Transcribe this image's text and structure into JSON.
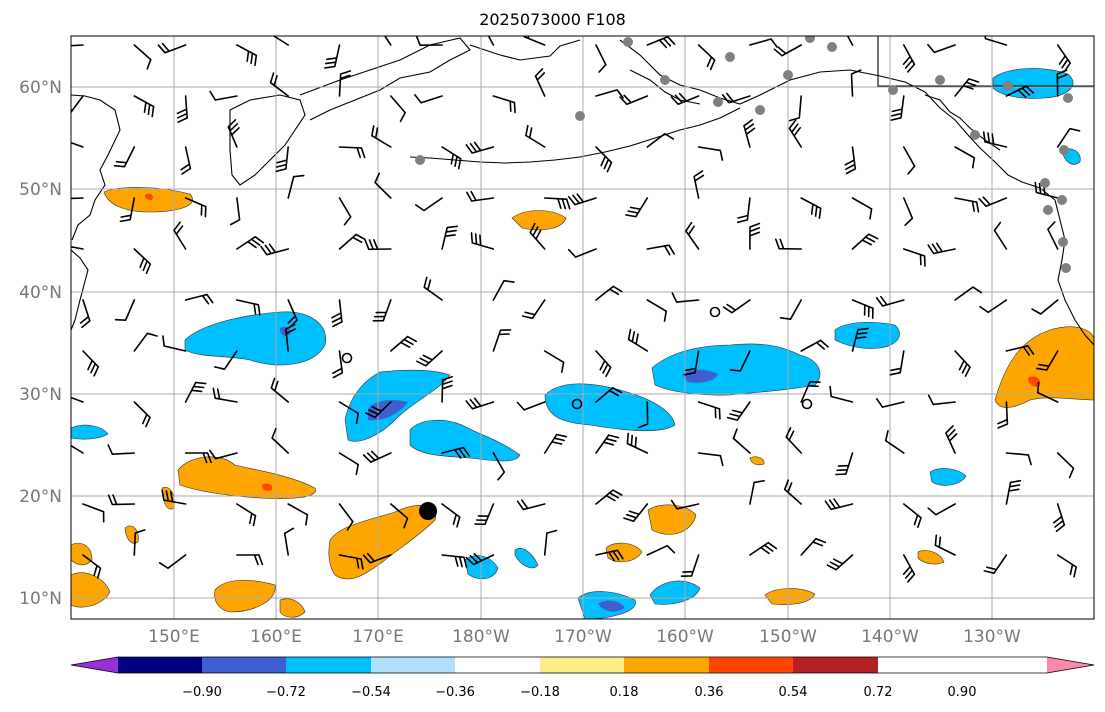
{
  "title": "2025073000 F108",
  "map": {
    "lat_labels": [
      "60°N",
      "50°N",
      "40°N",
      "30°N",
      "20°N",
      "10°N"
    ],
    "lat_values": [
      60,
      50,
      40,
      30,
      20,
      10
    ],
    "lon_labels": [
      "150°E",
      "160°E",
      "170°E",
      "180°W",
      "170°W",
      "160°W",
      "150°W",
      "140°W",
      "130°W"
    ],
    "lon_values": [
      150,
      160,
      170,
      180,
      190,
      200,
      210,
      220,
      230
    ],
    "extent": {
      "lon_min": 140,
      "lon_max": 240,
      "lat_min": 8,
      "lat_max": 65
    },
    "grid": true,
    "storm_marker": {
      "lon": 185,
      "lat": 18.5
    },
    "colors": {
      "ocean_bg": "#ffffff",
      "coast": "#000000",
      "grid": "#aaaaaa",
      "station": "#808080"
    }
  },
  "colorbar": {
    "labels": [
      "−0.90",
      "−0.72",
      "−0.54",
      "−0.36",
      "−0.18",
      "0.18",
      "0.36",
      "0.54",
      "0.72",
      "0.90"
    ],
    "colors": [
      "#9b30d9",
      "#000080",
      "#3d5fcf",
      "#00bfff",
      "#b0e0ff",
      "#ffffff",
      "#ffee88",
      "#ffa500",
      "#ff4500",
      "#b22222",
      "#ff88aa"
    ],
    "extend": "both"
  }
}
